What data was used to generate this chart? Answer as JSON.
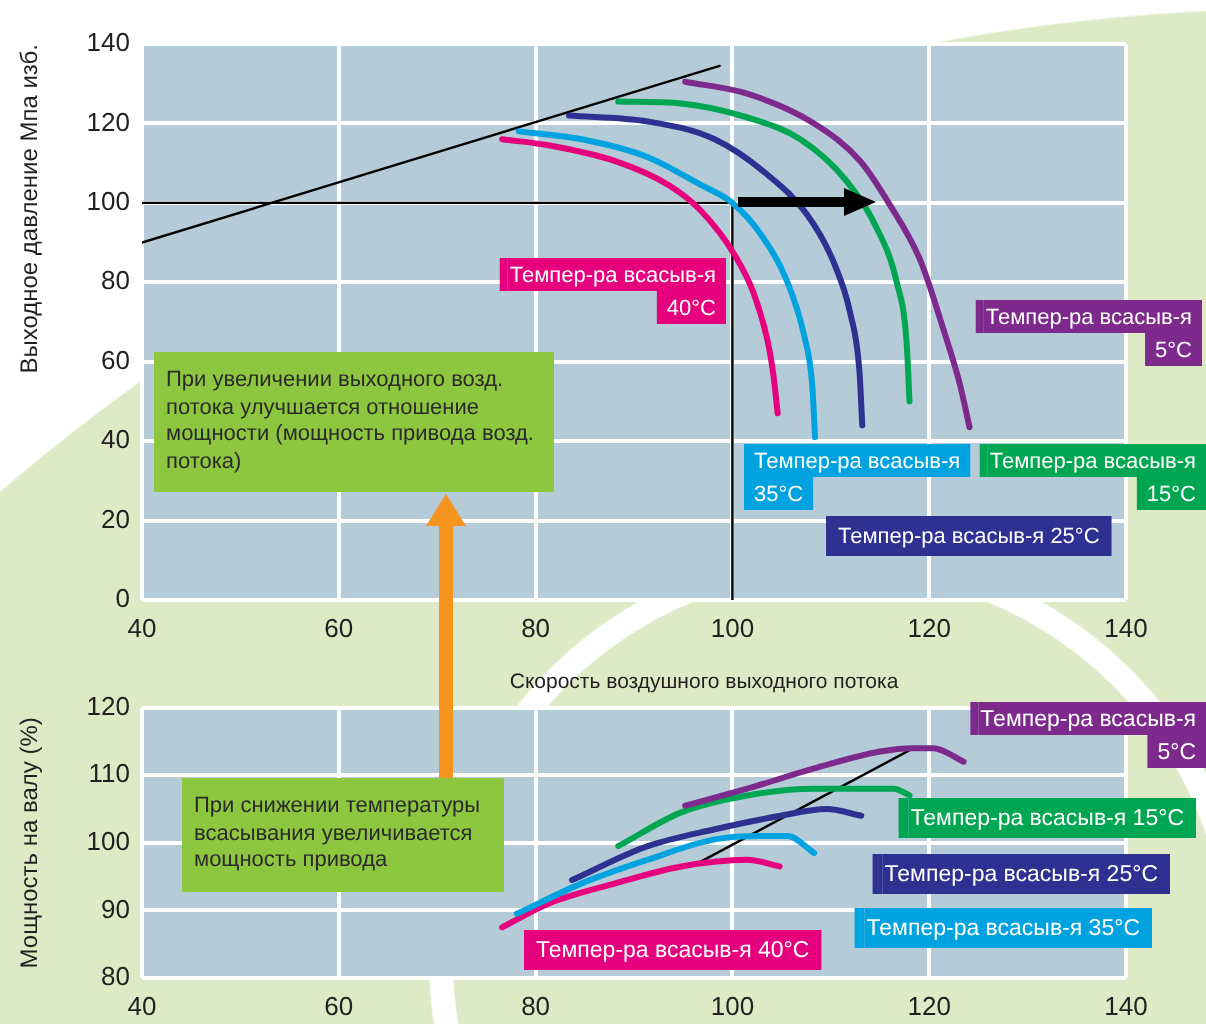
{
  "chart_data": [
    {
      "type": "line",
      "xlabel": "Скорость воздушного выходного потока",
      "ylabel": "Выходное давление Мпа изб.",
      "xlim": [
        40,
        140
      ],
      "xticks": [
        40,
        60,
        80,
        100,
        120,
        140
      ],
      "ylim": [
        0,
        140
      ],
      "yticks": [
        0,
        20,
        40,
        60,
        80,
        100,
        120,
        140
      ],
      "grid": true,
      "legend": "right",
      "annotations": [
        "При увеличении выходного возд. потока улучшается отношение мощности (мощность привода возд. потока)"
      ],
      "series": [
        {
          "name": "Темпер-ра всасыв-я 5°C",
          "color": "#7d2a8c",
          "x": [
            95.2,
            101.5,
            108.3,
            113,
            116,
            119.1,
            121.4,
            123.1,
            124.1
          ],
          "values": [
            130.5,
            127.5,
            120,
            110.5,
            99.5,
            85.5,
            68.5,
            54.5,
            43.5
          ]
        },
        {
          "name": "Темпер-ра всасыв-я 15°C",
          "color": "#00a651",
          "x": [
            88.4,
            94.8,
            101.5,
            106.9,
            111.6,
            114.7,
            116.7,
            117.7,
            118
          ],
          "values": [
            125.5,
            125,
            121.5,
            116,
            105.5,
            93.5,
            80,
            65,
            50
          ]
        },
        {
          "name": "Темпер-ра всасыв-я 25°C",
          "color": "#2e3192",
          "x": [
            83.4,
            91.4,
            98.2,
            103.6,
            107.6,
            110.3,
            112,
            112.9,
            113.2
          ],
          "values": [
            122,
            120.5,
            116,
            107,
            97,
            85,
            72,
            58,
            44
          ]
        },
        {
          "name": "Темпер-ра всасыв-я 35°C",
          "color": "#00a3e0",
          "x": [
            78.3,
            84.7,
            91.4,
            96.8,
            100,
            102.9,
            105.6,
            107.3,
            108.1,
            108.4
          ],
          "values": [
            118,
            116,
            111.5,
            104.5,
            100,
            92,
            80,
            66.5,
            54.5,
            41
          ]
        },
        {
          "name": "Темпер-ра всасыв-я 40°C",
          "color": "#e6007e",
          "x": [
            76.6,
            81.3,
            88.1,
            93.5,
            96.8,
            100.2,
            102.2,
            103.6,
            104.2,
            104.6
          ],
          "values": [
            116,
            114.5,
            110.5,
            104.5,
            98,
            87,
            77,
            65,
            56,
            47
          ]
        },
        {
          "color": "#000000",
          "x": [
            40,
            98.7
          ],
          "values": [
            90,
            134.5
          ]
        },
        {
          "color": "#000000",
          "x": [
            40,
            100,
            100
          ],
          "values": [
            100,
            100,
            0
          ]
        }
      ]
    },
    {
      "type": "line",
      "ylabel": "Мощность на валу (%)",
      "xlim": [
        40,
        140
      ],
      "xticks": [
        40,
        60,
        80,
        100,
        120,
        140
      ],
      "ylim": [
        80,
        120
      ],
      "yticks": [
        80,
        90,
        100,
        110,
        120
      ],
      "grid": true,
      "legend": "right",
      "annotations": [
        "При снижении температуры всасывания увеличивается мощность привода"
      ],
      "series": [
        {
          "name": "Темпер-ра всасыв-я 5°C",
          "color": "#7d2a8c",
          "x": [
            95.2,
            101.5,
            108.3,
            115,
            118.4,
            120.4,
            123.5
          ],
          "values": [
            105.5,
            108,
            111,
            113.5,
            114,
            114,
            112
          ]
        },
        {
          "name": "Темпер-ра всасыв-я 15°C",
          "color": "#00a651",
          "x": [
            88.4,
            94.8,
            101.5,
            108.3,
            113.7,
            116.4,
            118
          ],
          "values": [
            99.5,
            104.5,
            107,
            108,
            108,
            108,
            107
          ]
        },
        {
          "name": "Темпер-ра всасыв-я 25°C",
          "color": "#2e3192",
          "x": [
            83.7,
            91.4,
            98.2,
            104.9,
            109.6,
            113.1
          ],
          "values": [
            94.5,
            99.5,
            102,
            104,
            105,
            104
          ]
        },
        {
          "name": "Темпер-ра всасыв-я 35°C",
          "color": "#00a3e0",
          "x": [
            78.1,
            84.7,
            91.4,
            98.2,
            102.9,
            105.6,
            108.3
          ],
          "values": [
            89.5,
            94,
            97.5,
            100.5,
            101,
            101,
            98.5
          ]
        },
        {
          "name": "Темпер-ра всасыв-я 40°C",
          "color": "#e6007e",
          "x": [
            76.6,
            81.3,
            88.1,
            94.8,
            101.5,
            104.8
          ],
          "values": [
            87.5,
            91,
            94,
            96.5,
            97.5,
            96.5
          ]
        },
        {
          "color": "#000000",
          "x": [
            96.5,
            118.4
          ],
          "values": [
            97,
            114
          ]
        }
      ]
    }
  ]
}
